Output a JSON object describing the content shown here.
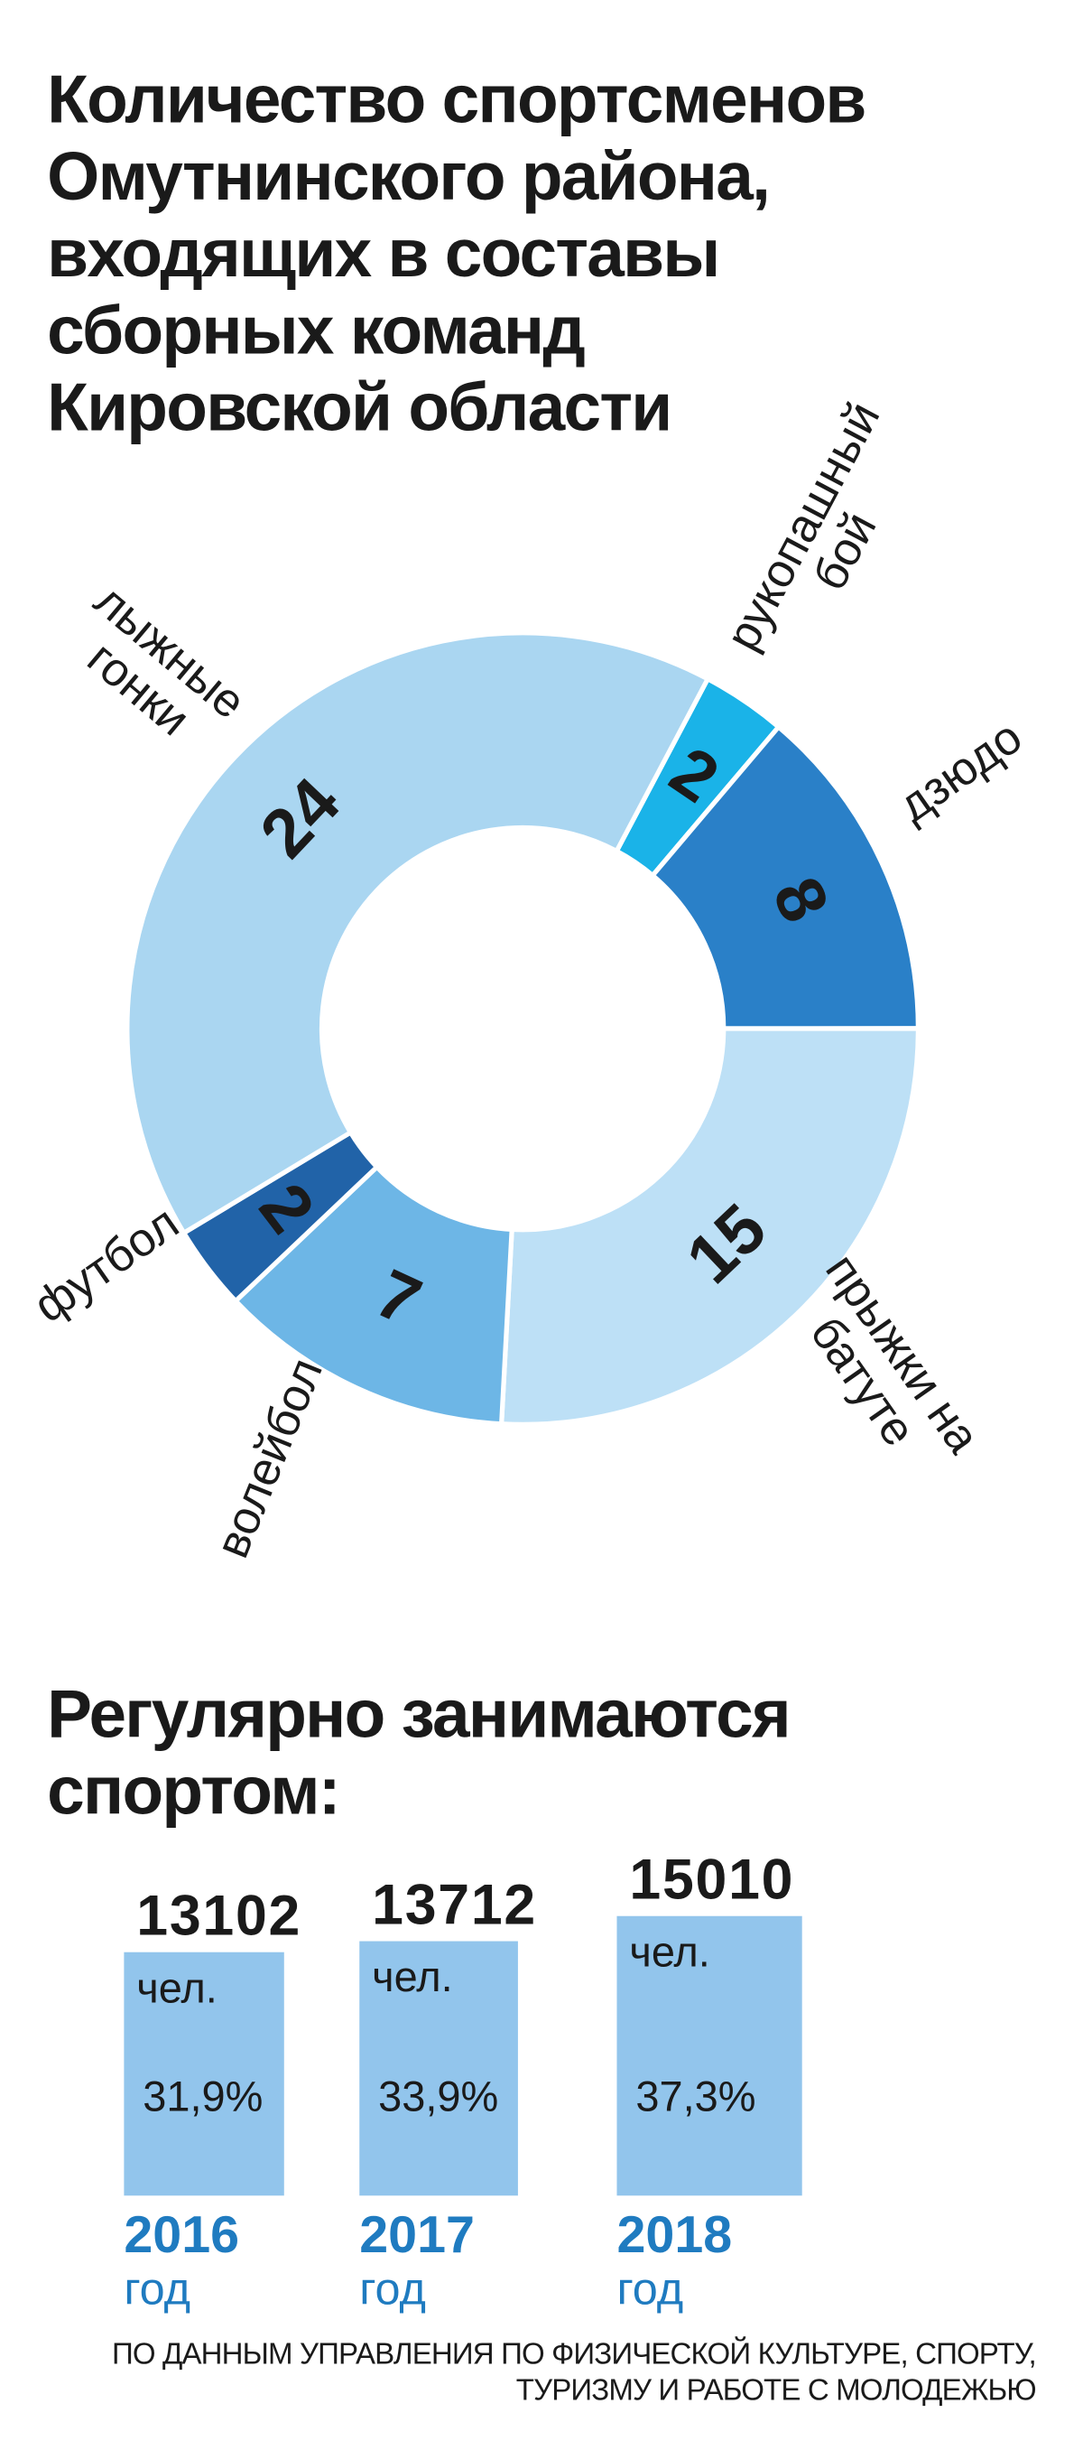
{
  "chart_data": [
    {
      "type": "pie",
      "title": "Количество спортсменов Омутнинского района, входящих в составы сборных команд Кировской области",
      "categories": [
        "рукопашный бой",
        "дзюдо",
        "прыжки на батуте",
        "волейбол",
        "футбол",
        "лыжные гонки"
      ],
      "values": [
        2,
        8,
        15,
        7,
        2,
        24
      ],
      "colors": [
        "#1ab3e8",
        "#2a80c8",
        "#bde0f6",
        "#6db6e6",
        "#2163a8",
        "#aad6f1"
      ],
      "donut": true
    },
    {
      "type": "bar",
      "title": "Регулярно занимаются спортом:",
      "categories": [
        "2016",
        "2017",
        "2018"
      ],
      "category_suffix": "год",
      "values": [
        13102,
        13712,
        15010
      ],
      "unit": "чел.",
      "percent_labels": [
        "31,9%",
        "33,9%",
        "37,3%"
      ],
      "color": "#92c5ec",
      "source": "ПО ДАННЫМ УПРАВЛЕНИЯ ПО ФИЗИЧЕСКОЙ КУЛЬТУРЕ, СПОРТУ, ТУРИЗМУ И РАБОТЕ С МОЛОДЕЖЬЮ"
    }
  ]
}
